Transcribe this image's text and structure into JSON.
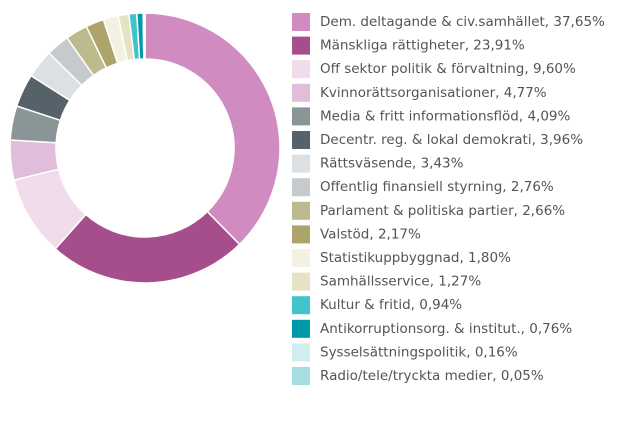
{
  "chart_data": {
    "type": "donut",
    "categories": [
      "Dem. deltagande & civ.samhället, 37,65%",
      "Mänskliga rättigheter, 23,91%",
      "Off sektor politik & förvaltning, 9,60%",
      "Kvinnorättsorganisationer, 4,77%",
      "Media & fritt informationsflöd, 4,09%",
      "Decentr. reg. & lokal demokrati, 3,96%",
      "Rättsväsende, 3,43%",
      "Offentlig finansiell styrning, 2,76%",
      "Parlament & politiska partier, 2,66%",
      "Valstöd, 2,17%",
      "Statistikuppbyggnad, 1,80%",
      "Samhällsservice, 1,27%",
      "Kultur & fritid, 0,94%",
      "Antikorruptionsorg. & institut., 0,76%",
      "Sysselsättningspolitik, 0,16%",
      "Radio/tele/tryckta medier, 0,05%"
    ],
    "values": [
      37.65,
      23.91,
      9.6,
      4.77,
      4.09,
      3.96,
      3.43,
      2.76,
      2.66,
      2.17,
      1.8,
      1.27,
      0.94,
      0.76,
      0.16,
      0.05
    ],
    "colors": [
      "#d08cc0",
      "#a64d8c",
      "#f0dcea",
      "#e0bedb",
      "#8a9598",
      "#56626a",
      "#dde0e2",
      "#c5cacd",
      "#bdbb8e",
      "#aca46a",
      "#f3f1e2",
      "#e6e2c5",
      "#40c4cc",
      "#0099aa",
      "#d0eef0",
      "#a8dde0"
    ]
  }
}
